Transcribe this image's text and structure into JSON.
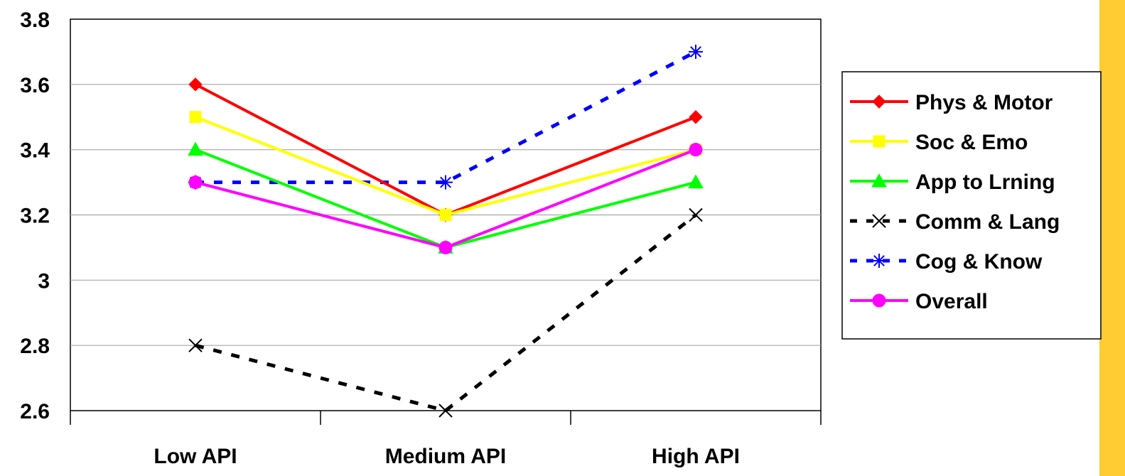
{
  "chart_data": {
    "type": "line",
    "categories": [
      "Low API",
      "Medium API",
      "High API"
    ],
    "ylim": [
      2.6,
      3.8
    ],
    "yticks": [
      2.6,
      2.8,
      3,
      3.2,
      3.4,
      3.6,
      3.8
    ],
    "ytick_labels": [
      "2.6",
      "2.8",
      "3",
      "3.2",
      "3.4",
      "3.6",
      "3.8"
    ],
    "grid": true,
    "legend_position": "right",
    "series": [
      {
        "name": "Phys & Motor",
        "values": [
          3.6,
          3.2,
          3.5
        ],
        "color": "#ff0000",
        "marker": "diamond",
        "dashed": false
      },
      {
        "name": "Soc & Emo",
        "values": [
          3.5,
          3.2,
          3.4
        ],
        "color": "#ffff00",
        "marker": "square",
        "dashed": false
      },
      {
        "name": "App to Lrning",
        "values": [
          3.4,
          3.1,
          3.3
        ],
        "color": "#00ff00",
        "marker": "triangle",
        "dashed": false
      },
      {
        "name": "Comm & Lang",
        "values": [
          2.8,
          2.6,
          3.2
        ],
        "color": "#000000",
        "marker": "x",
        "dashed": true
      },
      {
        "name": "Cog & Know",
        "values": [
          3.3,
          3.3,
          3.7
        ],
        "color": "#0000ff",
        "marker": "star",
        "dashed": true
      },
      {
        "name": "Overall",
        "values": [
          3.3,
          3.1,
          3.4
        ],
        "color": "#ff00ff",
        "marker": "circle",
        "dashed": false
      }
    ]
  },
  "theme": {
    "accent_bar_color": "#ffcc33"
  }
}
